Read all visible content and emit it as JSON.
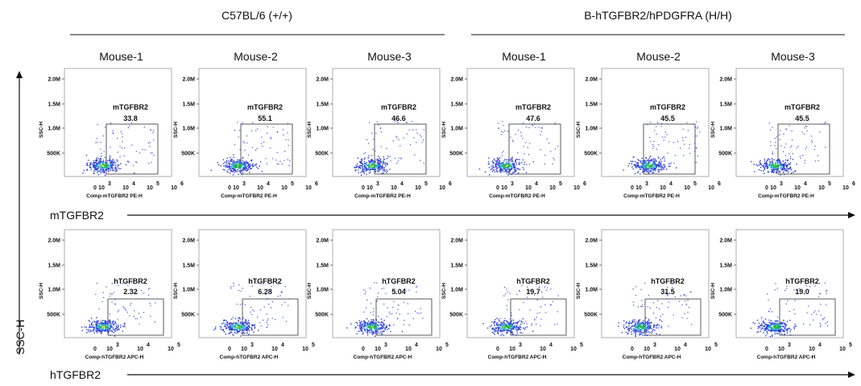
{
  "header": {
    "group_left": "C57BL/6 (+/+)",
    "group_right": "B-hTGFBR2/hPDGFRA (H/H)"
  },
  "mouse_labels": [
    "Mouse-1",
    "Mouse-2",
    "Mouse-3",
    "Mouse-1",
    "Mouse-2",
    "Mouse-3"
  ],
  "y_axis_label": "SSC-H",
  "rows": [
    {
      "axis_label": "mTGFBR2"
    },
    {
      "axis_label": "hTGFBR2"
    }
  ],
  "chart_data": [
    {
      "type": "scatter",
      "marker": "mTGFBR2",
      "ylabel": "SSC-H",
      "xlabel": "Comp-mTGFBR2 PE-H",
      "ytick_labels": [
        "500K",
        "1.0M",
        "1.5M",
        "2.0M"
      ],
      "xtick_labels": [
        "0",
        "10",
        "10",
        "10",
        "3",
        "4",
        "5",
        "6"
      ],
      "xtick_values": [
        0,
        3,
        4,
        5,
        6
      ],
      "gate_label": "mTGFBR2",
      "panels": [
        {
          "group": "C57BL/6 (+/+)",
          "mouse": "Mouse-1",
          "gate_percent": "33.8"
        },
        {
          "group": "C57BL/6 (+/+)",
          "mouse": "Mouse-2",
          "gate_percent": "55.1"
        },
        {
          "group": "C57BL/6 (+/+)",
          "mouse": "Mouse-3",
          "gate_percent": "46.6"
        },
        {
          "group": "B-hTGFBR2/hPDGFRA (H/H)",
          "mouse": "Mouse-1",
          "gate_percent": "47.6"
        },
        {
          "group": "B-hTGFBR2/hPDGFRA (H/H)",
          "mouse": "Mouse-2",
          "gate_percent": "45.5"
        },
        {
          "group": "B-hTGFBR2/hPDGFRA (H/H)",
          "mouse": "Mouse-3",
          "gate_percent": "45.5"
        }
      ]
    },
    {
      "type": "scatter",
      "marker": "hTGFBR2",
      "ylabel": "SSC-H",
      "xlabel": "Comp-hTGFBR2 APC-H",
      "ytick_labels": [
        "500K",
        "1.0M",
        "1.5M",
        "2.0M"
      ],
      "xtick_labels": [
        "0",
        "10",
        "10",
        "10",
        "3",
        "4",
        "5"
      ],
      "xtick_values": [
        0,
        3,
        4,
        5
      ],
      "gate_label": "hTGFBR2",
      "panels": [
        {
          "group": "C57BL/6 (+/+)",
          "mouse": "Mouse-1",
          "gate_percent": "2.32"
        },
        {
          "group": "C57BL/6 (+/+)",
          "mouse": "Mouse-2",
          "gate_percent": "6.28"
        },
        {
          "group": "C57BL/6 (+/+)",
          "mouse": "Mouse-3",
          "gate_percent": "5.04"
        },
        {
          "group": "B-hTGFBR2/hPDGFRA (H/H)",
          "mouse": "Mouse-1",
          "gate_percent": "19.7"
        },
        {
          "group": "B-hTGFBR2/hPDGFRA (H/H)",
          "mouse": "Mouse-2",
          "gate_percent": "31.5"
        },
        {
          "group": "B-hTGFBR2/hPDGFRA (H/H)",
          "mouse": "Mouse-3",
          "gate_percent": "19.0"
        }
      ]
    }
  ]
}
